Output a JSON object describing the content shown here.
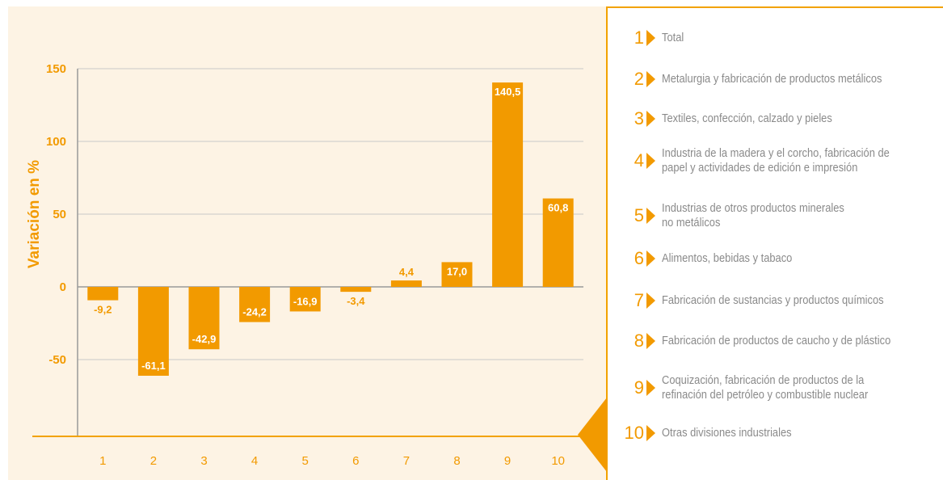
{
  "chart_data": {
    "type": "bar",
    "categories": [
      "1",
      "2",
      "3",
      "4",
      "5",
      "6",
      "7",
      "8",
      "9",
      "10"
    ],
    "values": [
      -9.2,
      -61.1,
      -42.9,
      -24.2,
      -16.9,
      -3.4,
      4.4,
      17.0,
      140.5,
      60.8
    ],
    "value_labels": [
      "-9,2",
      "-61,1",
      "-42,9",
      "-24,2",
      "-16,9",
      "-3,4",
      "4,4",
      "17,0",
      "140,5",
      "60,8"
    ],
    "ylabel": "Variación en %",
    "yticks": [
      150,
      100,
      50,
      0,
      -50
    ],
    "ylim": [
      -100,
      150
    ],
    "grid": true,
    "bar_color": "#f29a00"
  },
  "legend": {
    "items": [
      {
        "num": "1",
        "lines": [
          "Total"
        ]
      },
      {
        "num": "2",
        "lines": [
          "Metalurgia y fabricación de productos metálicos"
        ]
      },
      {
        "num": "3",
        "lines": [
          "Textiles, confección, calzado y pieles"
        ]
      },
      {
        "num": "4",
        "lines": [
          "Industria de la madera y el corcho, fabricación de",
          "papel y actividades de edición e impresión"
        ]
      },
      {
        "num": "5",
        "lines": [
          "Industrias de otros productos minerales",
          "no metálicos"
        ]
      },
      {
        "num": "6",
        "lines": [
          "Alimentos, bebidas y tabaco"
        ]
      },
      {
        "num": "7",
        "lines": [
          "Fabricación de sustancias y productos químicos"
        ]
      },
      {
        "num": "8",
        "lines": [
          "Fabricación de productos de caucho y de plástico"
        ]
      },
      {
        "num": "9",
        "lines": [
          "Coquización, fabricación de productos de la",
          "refinación del petróleo y combustible nuclear"
        ]
      },
      {
        "num": "10",
        "lines": [
          "Otras divisiones industriales"
        ]
      }
    ]
  }
}
